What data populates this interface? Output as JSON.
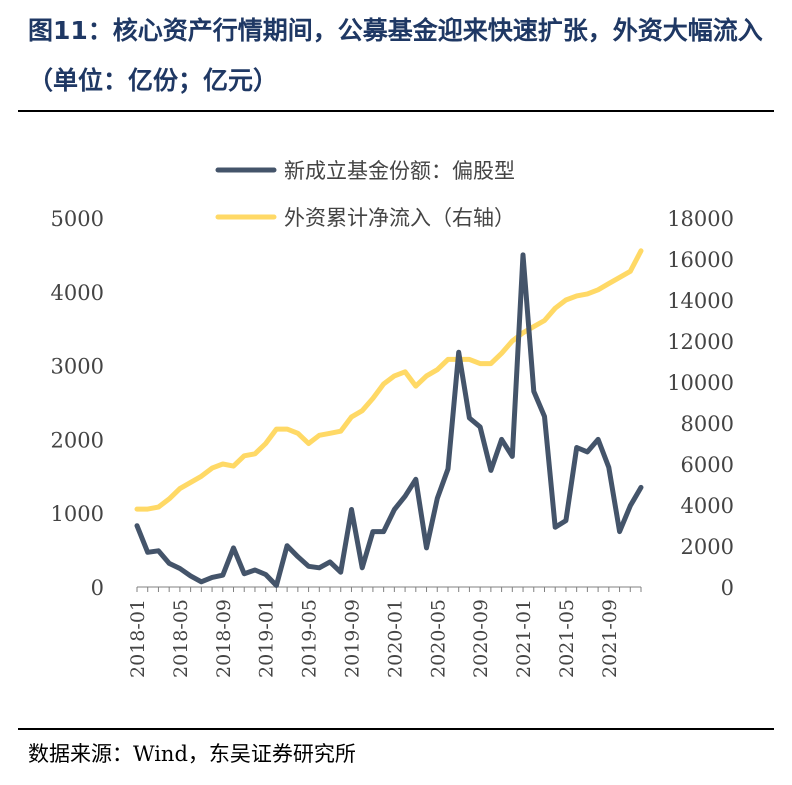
{
  "title": "图11：核心资产行情期间，公募基金迎来快速扩张，外资大幅流入（单位：亿份；亿元）",
  "source": "数据来源：Wind，东吴证券研究所",
  "colors": {
    "series1": "#44546a",
    "series2": "#ffd966",
    "axis": "#808080",
    "text": "#444444"
  },
  "chart_data": {
    "type": "line",
    "title": "",
    "legend_position": "top-center",
    "grid": false,
    "x_ticks": [
      "2018-01",
      "2018-05",
      "2018-09",
      "2019-01",
      "2019-05",
      "2019-09",
      "2020-01",
      "2020-05",
      "2020-09",
      "2021-01",
      "2021-05",
      "2021-09"
    ],
    "x": [
      "2018-01",
      "2018-02",
      "2018-03",
      "2018-04",
      "2018-05",
      "2018-06",
      "2018-07",
      "2018-08",
      "2018-09",
      "2018-10",
      "2018-11",
      "2018-12",
      "2019-01",
      "2019-02",
      "2019-03",
      "2019-04",
      "2019-05",
      "2019-06",
      "2019-07",
      "2019-08",
      "2019-09",
      "2019-10",
      "2019-11",
      "2019-12",
      "2020-01",
      "2020-02",
      "2020-03",
      "2020-04",
      "2020-05",
      "2020-06",
      "2020-07",
      "2020-08",
      "2020-09",
      "2020-10",
      "2020-11",
      "2020-12",
      "2021-01",
      "2021-02",
      "2021-03",
      "2021-04",
      "2021-05",
      "2021-06",
      "2021-07",
      "2021-08",
      "2021-09",
      "2021-10",
      "2021-11",
      "2021-12"
    ],
    "y_left": {
      "ticks": [
        "0",
        "1000",
        "2000",
        "3000",
        "4000",
        "5000"
      ],
      "ylim": [
        0,
        5000
      ]
    },
    "y_right": {
      "ticks": [
        "0",
        "2000",
        "4000",
        "6000",
        "8000",
        "10000",
        "12000",
        "14000",
        "16000",
        "18000"
      ],
      "ylim": [
        0,
        18000
      ]
    },
    "series": [
      {
        "name": "新成立基金份额：偏股型",
        "axis": "left",
        "values": [
          830,
          470,
          490,
          320,
          250,
          150,
          70,
          130,
          160,
          530,
          180,
          230,
          170,
          20,
          560,
          410,
          280,
          260,
          340,
          200,
          1050,
          260,
          750,
          750,
          1050,
          1230,
          1460,
          530,
          1200,
          1600,
          3180,
          2290,
          2170,
          1580,
          2000,
          1770,
          4500,
          2650,
          2310,
          810,
          900,
          1890,
          1830,
          2000,
          1620,
          750,
          1100,
          1350
        ]
      },
      {
        "name": "外资累计净流入（右轴）",
        "axis": "right",
        "values": [
          3800,
          3800,
          3900,
          4300,
          4800,
          5100,
          5400,
          5800,
          6000,
          5900,
          6400,
          6500,
          7000,
          7700,
          7700,
          7500,
          7000,
          7400,
          7500,
          7600,
          8300,
          8600,
          9200,
          9900,
          10300,
          10500,
          9800,
          10300,
          10600,
          11100,
          11100,
          11100,
          10900,
          10900,
          11400,
          12000,
          12400,
          12700,
          13000,
          13600,
          14000,
          14200,
          14300,
          14500,
          14800,
          15100,
          15400,
          16400
        ]
      }
    ]
  }
}
